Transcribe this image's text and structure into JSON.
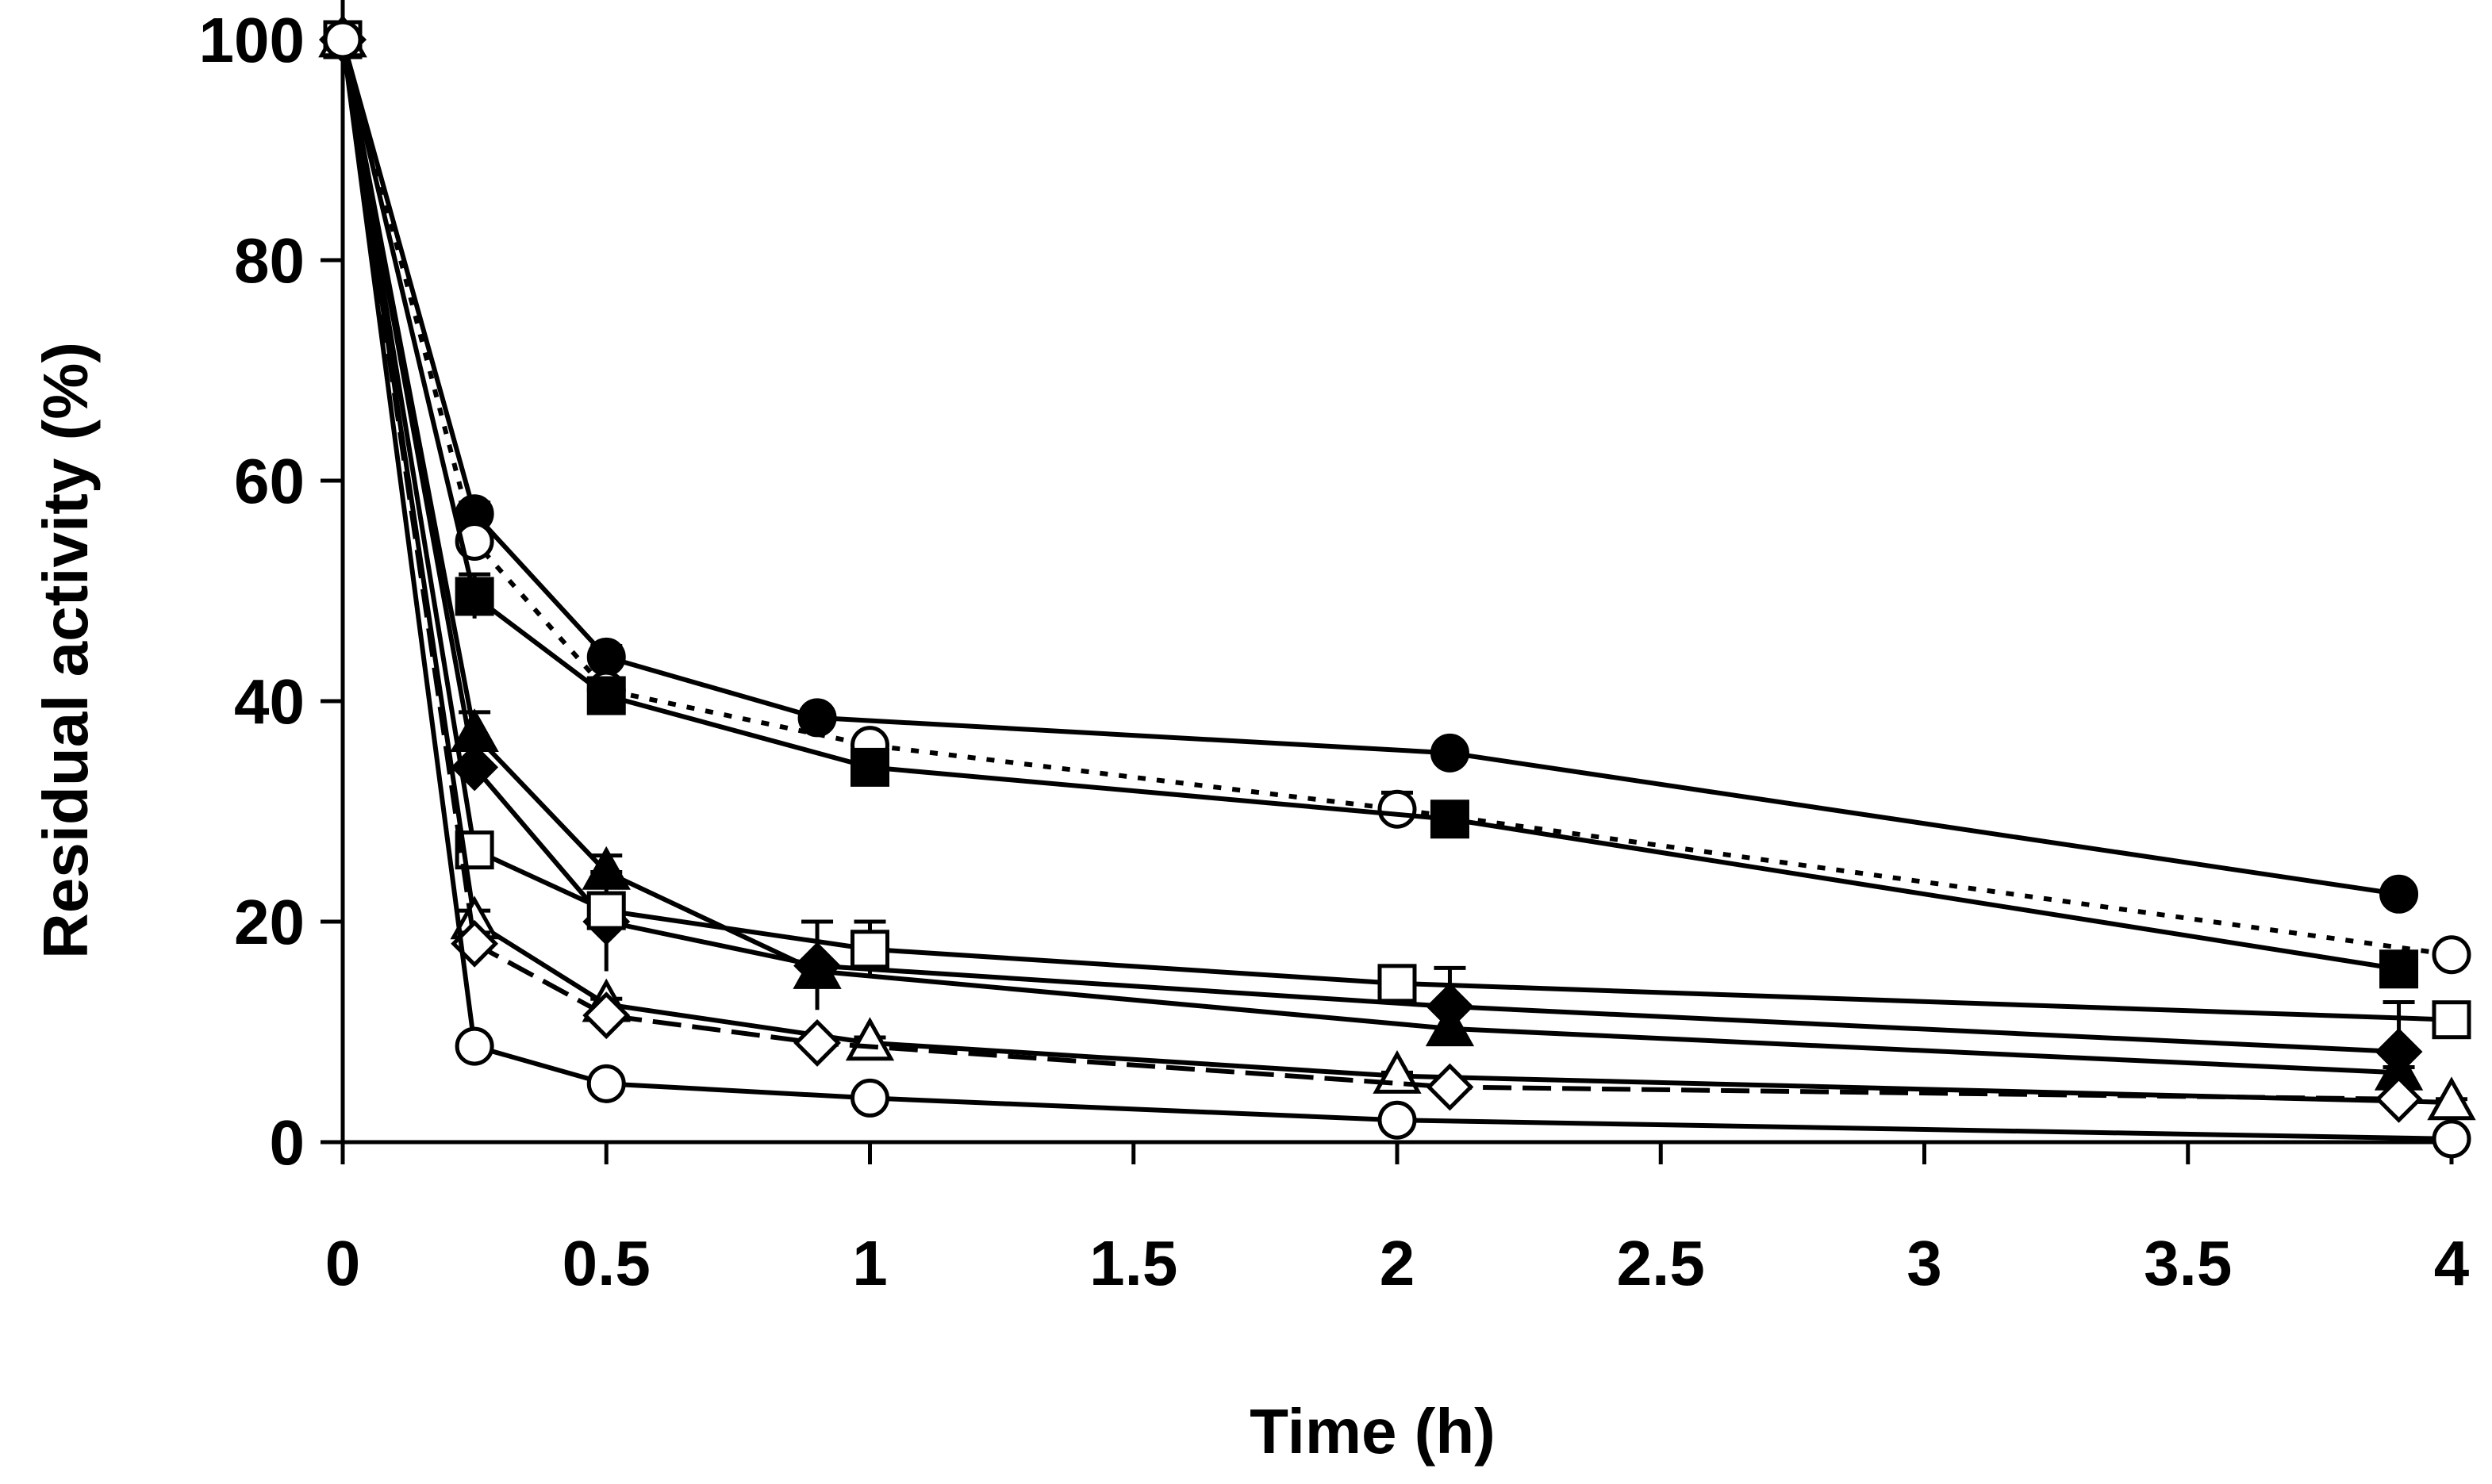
{
  "chart_data": {
    "type": "line",
    "title": "",
    "xlabel": "Time (h)",
    "ylabel": "Residual activity (%)",
    "xlim": [
      0,
      4
    ],
    "ylim": [
      0,
      100
    ],
    "xticks": [
      "0",
      "0.5",
      "1",
      "1.5",
      "2",
      "2.5",
      "3",
      "3.5",
      "4"
    ],
    "yticks": [
      "0",
      "20",
      "40",
      "60",
      "80",
      "100"
    ],
    "grid": false,
    "legend": "none",
    "colors": {
      "ink": "#000000",
      "background": "#ffffff"
    },
    "series": [
      {
        "name": "filled circle",
        "marker": "circle",
        "filled": true,
        "dash": "solid",
        "x": [
          0,
          0.25,
          0.5,
          0.9,
          2.1,
          3.9
        ],
        "y": [
          100,
          57,
          44,
          38.5,
          35.3,
          22.5
        ],
        "err": [
          4,
          1,
          1,
          0.5,
          0.5,
          0.5
        ]
      },
      {
        "name": "open circle (dotted)",
        "marker": "circle",
        "filled": false,
        "dash": "dotted",
        "x": [
          0,
          0.25,
          0.5,
          1,
          2,
          4
        ],
        "y": [
          100,
          54.5,
          41,
          36,
          30.2,
          17
        ],
        "err": [
          4,
          1,
          1,
          0.5,
          1.5,
          0.5
        ]
      },
      {
        "name": "filled square",
        "marker": "square",
        "filled": true,
        "dash": "solid",
        "x": [
          0,
          0.25,
          0.5,
          1,
          2.1,
          3.9
        ],
        "y": [
          100,
          49.5,
          40.5,
          34,
          29.3,
          15.7
        ],
        "err": [
          4,
          2,
          1.5,
          0.5,
          0.5,
          0.5
        ]
      },
      {
        "name": "filled triangle",
        "marker": "triangle",
        "filled": true,
        "dash": "solid",
        "x": [
          0,
          0.25,
          0.5,
          0.9,
          2.1,
          3.9
        ],
        "y": [
          100,
          37,
          24.5,
          15.5,
          10.3,
          6.3
        ],
        "err": [
          4,
          2,
          1.5,
          1,
          1.5,
          0.5
        ]
      },
      {
        "name": "filled diamond",
        "marker": "diamond",
        "filled": true,
        "dash": "solid",
        "x": [
          0,
          0.25,
          0.5,
          0.9,
          2.1,
          3.9
        ],
        "y": [
          100,
          34,
          20,
          16,
          12.3,
          8.2
        ],
        "err": [
          4,
          2,
          4.5,
          4,
          3.5,
          4.5
        ]
      },
      {
        "name": "open square",
        "marker": "square",
        "filled": false,
        "dash": "solid",
        "x": [
          0,
          0.25,
          0.5,
          1,
          2,
          4
        ],
        "y": [
          100,
          26.5,
          21,
          17.5,
          14.4,
          11.1
        ],
        "err": [
          4,
          1.5,
          1,
          2.5,
          0.5,
          1.5
        ]
      },
      {
        "name": "open triangle",
        "marker": "triangle",
        "filled": false,
        "dash": "solid",
        "x": [
          0,
          0.25,
          0.5,
          1,
          2,
          4
        ],
        "y": [
          100,
          20,
          12.5,
          9,
          6,
          3.6
        ],
        "err": [
          4,
          1,
          0.5,
          0.5,
          0.3,
          0.3
        ]
      },
      {
        "name": "open diamond (dashed)",
        "marker": "diamond",
        "filled": false,
        "dash": "dashed",
        "x": [
          0,
          0.25,
          0.5,
          0.9,
          2.1,
          3.9
        ],
        "y": [
          100,
          18,
          11.5,
          9,
          5,
          3.9
        ],
        "err": [
          4,
          1,
          0.5,
          0.5,
          0.3,
          0.3
        ]
      },
      {
        "name": "open circle (low)",
        "marker": "circle",
        "filled": false,
        "dash": "solid",
        "x": [
          0,
          0.25,
          0.5,
          1,
          2,
          4
        ],
        "y": [
          100,
          8.7,
          5.3,
          4,
          2,
          0.3
        ],
        "err": [
          4,
          0.5,
          0.3,
          0.3,
          0.2,
          0.2
        ]
      }
    ]
  }
}
